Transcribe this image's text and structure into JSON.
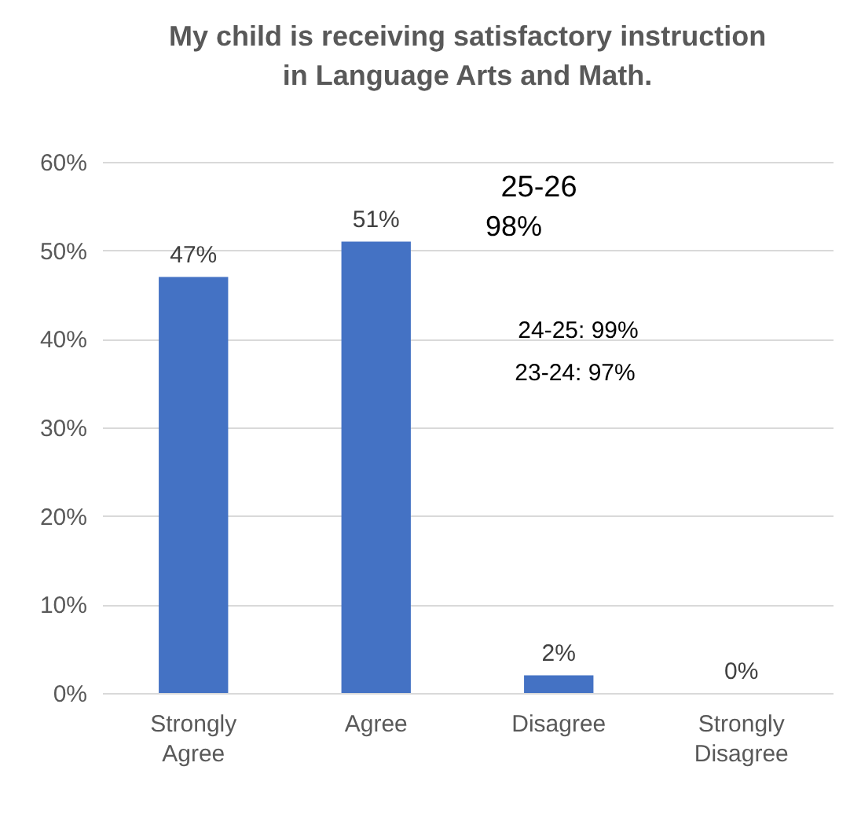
{
  "chart_data": {
    "type": "bar",
    "title": "My child is receiving satisfactory instruction\nin Language Arts and Math.",
    "categories": [
      "Strongly Agree",
      "Agree",
      "Disagree",
      "Strongly Disagree"
    ],
    "values": [
      47,
      51,
      2,
      0
    ],
    "color": "#4472c4",
    "value_labels": [
      "47%",
      "51%",
      "2%",
      "0%"
    ],
    "ylim": [
      0,
      60
    ],
    "yticks": [
      {
        "value": 0,
        "label": "0%"
      },
      {
        "value": 10,
        "label": "10%"
      },
      {
        "value": 20,
        "label": "20%"
      },
      {
        "value": 30,
        "label": "30%"
      },
      {
        "value": 40,
        "label": "40%"
      },
      {
        "value": 50,
        "label": "50%"
      },
      {
        "value": 60,
        "label": "60%"
      }
    ],
    "grid": true,
    "annotations": [
      "25-26",
      "98%",
      "24-25: 99%",
      "23-24: 97%"
    ]
  }
}
